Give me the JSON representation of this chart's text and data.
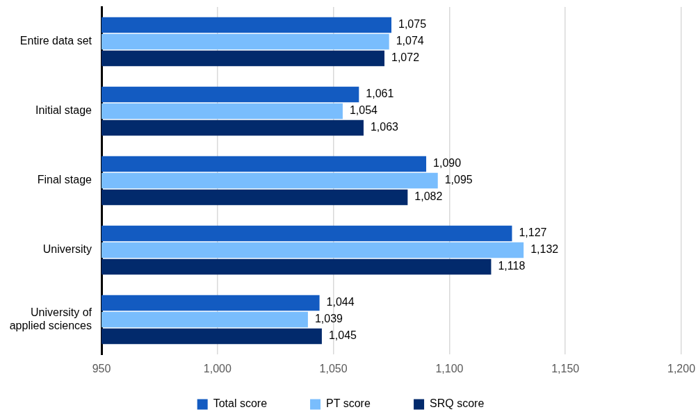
{
  "chart_data": {
    "type": "bar",
    "orientation": "horizontal",
    "categories": [
      "Entire data set",
      "Initial stage",
      "Final stage",
      "University",
      "University of applied sciences"
    ],
    "series": [
      {
        "name": "Total score",
        "color": "#135bc1",
        "values": [
          1075,
          1061,
          1090,
          1127,
          1044
        ],
        "value_labels": [
          "1,075",
          "1,061",
          "1,090",
          "1,127",
          "1,044"
        ]
      },
      {
        "name": "PT score",
        "color": "#79bdfd",
        "values": [
          1074,
          1054,
          1095,
          1132,
          1039
        ],
        "value_labels": [
          "1,074",
          "1,054",
          "1,095",
          "1,132",
          "1,039"
        ]
      },
      {
        "name": "SRQ score",
        "color": "#022a6c",
        "values": [
          1072,
          1063,
          1082,
          1118,
          1045
        ],
        "value_labels": [
          "1,072",
          "1,063",
          "1,082",
          "1,118",
          "1,045"
        ]
      }
    ],
    "xlim": [
      950,
      1200
    ],
    "xticks": [
      950,
      {
        "value": 1000,
        "label": "1,000"
      },
      {
        "value": 1050,
        "label": "1,050"
      },
      {
        "value": 1100,
        "label": "1,100"
      },
      {
        "value": 1150,
        "label": "1,150"
      },
      {
        "value": 1200,
        "label": "1,200"
      }
    ],
    "grid": "x",
    "legend": "bottom"
  }
}
